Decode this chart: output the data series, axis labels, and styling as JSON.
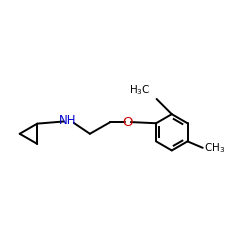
{
  "bg_color": "#ffffff",
  "bond_color": "#000000",
  "nh_color": "#0000cc",
  "o_color": "#cc0000",
  "text_color": "#000000",
  "figsize": [
    2.5,
    2.5
  ],
  "dpi": 100,
  "lw": 1.4,
  "ring_r": 0.62,
  "cp_r": 0.4,
  "xlim": [
    0.0,
    8.5
  ],
  "ylim": [
    3.2,
    7.5
  ]
}
